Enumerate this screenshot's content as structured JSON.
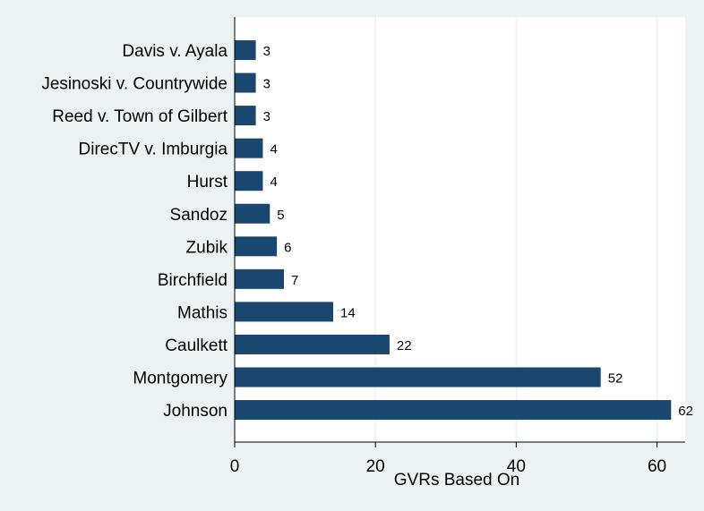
{
  "chart_data": {
    "type": "bar",
    "orientation": "horizontal",
    "categories": [
      "Davis v. Ayala",
      "Jesinoski v. Countrywide",
      "Reed v. Town of Gilbert",
      "DirecTV v. Imburgia",
      "Hurst",
      "Sandoz",
      "Zubik",
      "Birchfield",
      "Mathis",
      "Caulkett",
      "Montgomery",
      "Johnson"
    ],
    "values": [
      3,
      3,
      3,
      4,
      4,
      5,
      6,
      7,
      14,
      22,
      52,
      62
    ],
    "xlabel": "GVRs Based On",
    "ylabel": "",
    "xlim": [
      0,
      64
    ],
    "xticks": [
      0,
      20,
      40,
      60
    ],
    "grid": "vertical",
    "bar_color": "#1a476f",
    "background_color": "#eaf2f3",
    "plot_background_color": "#ffffff",
    "grid_color": "#eaf2f3"
  }
}
